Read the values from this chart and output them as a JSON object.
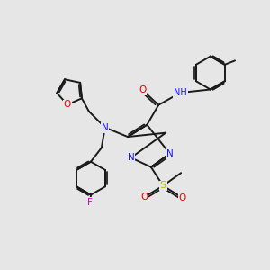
{
  "bg_color": "#e6e6e6",
  "bond_color": "#1a1a1a",
  "bond_lw": 1.4,
  "atom_colors": {
    "N": "#1414ff",
    "O": "#e60000",
    "F": "#cc00cc",
    "S": "#b8b800",
    "H": "#008080"
  },
  "fs": 7.5
}
